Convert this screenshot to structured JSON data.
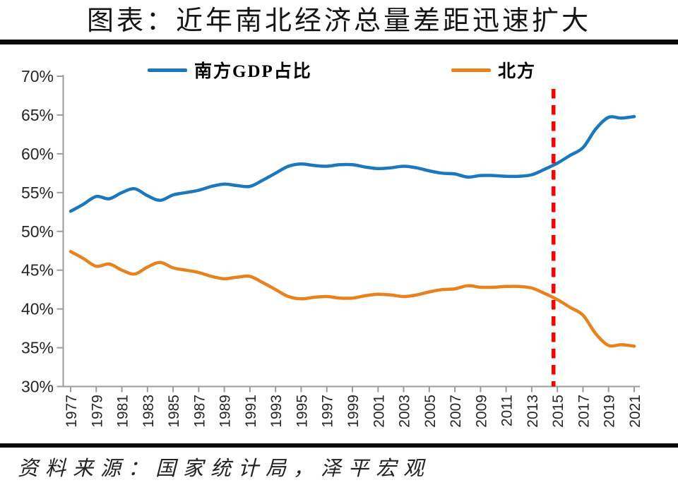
{
  "title": "图表：近年南北经济总量差距迅速扩大",
  "source": "资料来源：国家统计局，泽平宏观",
  "colors": {
    "south_line": "#1b78be",
    "north_line": "#e8821e",
    "marker_line": "#ff0000",
    "axis": "#9b9b9b",
    "tick_text": "#262626",
    "divider": "#0a0a0a"
  },
  "chart_data": {
    "type": "line",
    "title": "图表：近年南北经济总量差距迅速扩大",
    "xlabel": "",
    "ylabel": "",
    "grid": false,
    "legend_position": "top",
    "ylim": [
      30,
      70
    ],
    "y_tick_step": 5,
    "y_tick_labels": [
      "70%",
      "65%",
      "60%",
      "55%",
      "50%",
      "45%",
      "40%",
      "35%",
      "30%"
    ],
    "x_tick_labels": [
      "1977",
      "1979",
      "1981",
      "1983",
      "1985",
      "1987",
      "1989",
      "1991",
      "1993",
      "1995",
      "1997",
      "1999",
      "2001",
      "2003",
      "2005",
      "2007",
      "2009",
      "2011",
      "2013",
      "2015",
      "2017",
      "2019",
      "2021"
    ],
    "x": [
      1977,
      1978,
      1979,
      1980,
      1981,
      1982,
      1983,
      1984,
      1985,
      1986,
      1987,
      1988,
      1989,
      1990,
      1991,
      1992,
      1993,
      1994,
      1995,
      1996,
      1997,
      1998,
      1999,
      2000,
      2001,
      2002,
      2003,
      2004,
      2005,
      2006,
      2007,
      2008,
      2009,
      2010,
      2011,
      2012,
      2013,
      2014,
      2015,
      2016,
      2017,
      2018,
      2019,
      2020,
      2021
    ],
    "series": [
      {
        "name": "南方GDP占比",
        "color": "#1b78be",
        "values": [
          52.6,
          53.5,
          54.5,
          54.2,
          55.0,
          55.5,
          54.6,
          54.0,
          54.7,
          55.0,
          55.3,
          55.8,
          56.1,
          55.9,
          55.8,
          56.6,
          57.5,
          58.4,
          58.7,
          58.5,
          58.4,
          58.6,
          58.6,
          58.3,
          58.1,
          58.2,
          58.4,
          58.2,
          57.8,
          57.5,
          57.4,
          57.0,
          57.2,
          57.2,
          57.1,
          57.1,
          57.3,
          58.0,
          58.8,
          59.8,
          60.8,
          63.2,
          64.7,
          64.6,
          64.8
        ]
      },
      {
        "name": "北方",
        "color": "#e8821e",
        "values": [
          47.4,
          46.5,
          45.5,
          45.8,
          45.0,
          44.5,
          45.4,
          46.0,
          45.3,
          45.0,
          44.7,
          44.2,
          43.9,
          44.1,
          44.2,
          43.4,
          42.5,
          41.6,
          41.3,
          41.5,
          41.6,
          41.4,
          41.4,
          41.7,
          41.9,
          41.8,
          41.6,
          41.8,
          42.2,
          42.5,
          42.6,
          43.0,
          42.8,
          42.8,
          42.9,
          42.9,
          42.7,
          42.0,
          41.2,
          40.2,
          39.2,
          36.8,
          35.3,
          35.4,
          35.2
        ]
      }
    ],
    "vline": {
      "x_year": 2014.7,
      "color": "#ff0000",
      "style": "dashed"
    }
  }
}
